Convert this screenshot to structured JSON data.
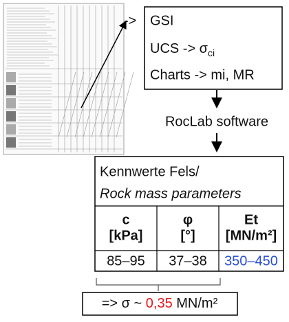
{
  "inputs": {
    "prefix": "->",
    "lines": [
      [
        "GSI"
      ],
      [
        "UCS -> σ",
        "ci"
      ],
      [
        "Charts -> mi, MR"
      ]
    ]
  },
  "software": "RocLab software",
  "table": {
    "title": "Kennwerte Fels/",
    "subtitle": "Rock mass parameters",
    "header": [
      [
        "c",
        "[kPa]"
      ],
      [
        "φ",
        "[°]"
      ],
      [
        "Et",
        "[MN/m²]"
      ]
    ],
    "values": [
      "85–95",
      "37–38",
      "350–450"
    ]
  },
  "result": [
    "=> σ ~ ",
    "0,35",
    " MN/m²"
  ]
}
